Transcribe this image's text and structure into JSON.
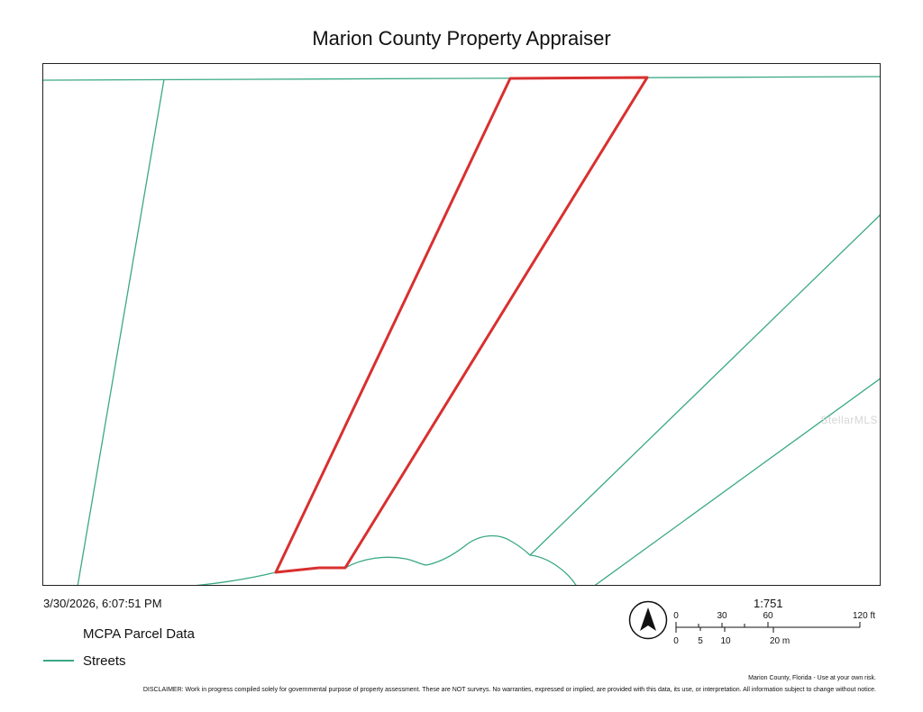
{
  "map": {
    "title": "Marion County Property Appraiser",
    "timestamp": "3/30/2026, 6:07:51 PM",
    "watermark": "StellarMLS",
    "scale_ratio": "1:751",
    "colors": {
      "parcel_highlight": "#d8302f",
      "streets": "#3aa886",
      "frame": "#222222"
    }
  },
  "legend": {
    "items": [
      {
        "label": "MCPA Parcel Data",
        "symbol": "none"
      },
      {
        "label": "Streets",
        "symbol": "line",
        "color": "#3aa886"
      }
    ]
  },
  "scalebar": {
    "feet": {
      "ticks": [
        "0",
        "30",
        "60"
      ],
      "end": "120 ft"
    },
    "meters": {
      "ticks": [
        "0",
        "5",
        "10"
      ],
      "end": "20 m"
    }
  },
  "compass": {
    "icon": "north-arrow-icon"
  },
  "footer": {
    "attribution": "Marion County, Florida - Use at your own risk.",
    "disclaimer": "DISCLAIMER: Work in progress compiled solely for governmental purpose of property assessment. These are NOT surveys. No warranties, expressed or implied, are provided with this data, its use, or interpretation. All information subject to change without notice."
  }
}
